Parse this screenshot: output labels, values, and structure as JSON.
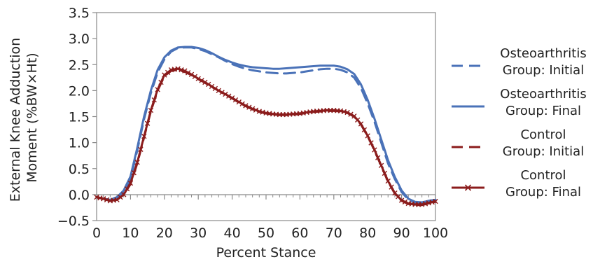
{
  "chart_data": {
    "type": "line",
    "title": "",
    "xlabel": "Percent Stance",
    "ylabel": [
      "External Knee Adduction",
      "Moment (%BW×Ht)"
    ],
    "xlim": [
      0,
      100
    ],
    "ylim": [
      -0.5,
      3.5
    ],
    "x_ticks": [
      "0",
      "10",
      "20",
      "30",
      "40",
      "50",
      "60",
      "70",
      "80",
      "90",
      "100"
    ],
    "y_ticks": [
      "3.5",
      "3.0",
      "2.5",
      "2.0",
      "1.5",
      "1.0",
      "0.5",
      "0.0",
      "−0.5"
    ],
    "grid": false,
    "legend_position": "right",
    "series": [
      {
        "name": [
          "Osteoarthritis",
          "Group: Initial"
        ],
        "color": "#4a72b8",
        "style": "dashed",
        "marker": "none",
        "points": [
          [
            0,
            -0.05
          ],
          [
            2,
            -0.08
          ],
          [
            4,
            -0.1
          ],
          [
            6,
            -0.05
          ],
          [
            8,
            0.05
          ],
          [
            10,
            0.3
          ],
          [
            12,
            0.85
          ],
          [
            14,
            1.45
          ],
          [
            16,
            1.95
          ],
          [
            18,
            2.35
          ],
          [
            20,
            2.6
          ],
          [
            22,
            2.75
          ],
          [
            24,
            2.82
          ],
          [
            26,
            2.83
          ],
          [
            28,
            2.83
          ],
          [
            30,
            2.8
          ],
          [
            32,
            2.76
          ],
          [
            34,
            2.7
          ],
          [
            36,
            2.64
          ],
          [
            38,
            2.57
          ],
          [
            40,
            2.51
          ],
          [
            42,
            2.46
          ],
          [
            44,
            2.42
          ],
          [
            46,
            2.39
          ],
          [
            48,
            2.37
          ],
          [
            50,
            2.35
          ],
          [
            52,
            2.34
          ],
          [
            54,
            2.33
          ],
          [
            56,
            2.33
          ],
          [
            58,
            2.34
          ],
          [
            60,
            2.35
          ],
          [
            62,
            2.37
          ],
          [
            64,
            2.39
          ],
          [
            66,
            2.41
          ],
          [
            68,
            2.42
          ],
          [
            70,
            2.42
          ],
          [
            72,
            2.4
          ],
          [
            74,
            2.35
          ],
          [
            76,
            2.25
          ],
          [
            78,
            2.05
          ],
          [
            80,
            1.75
          ],
          [
            82,
            1.4
          ],
          [
            84,
            1.0
          ],
          [
            86,
            0.6
          ],
          [
            88,
            0.3
          ],
          [
            90,
            0.05
          ],
          [
            92,
            -0.1
          ],
          [
            94,
            -0.15
          ],
          [
            96,
            -0.15
          ],
          [
            98,
            -0.12
          ],
          [
            100,
            -0.1
          ]
        ]
      },
      {
        "name": [
          "Osteoarthritis",
          "Group: Final"
        ],
        "color": "#4a72b8",
        "style": "solid",
        "marker": "none",
        "points": [
          [
            0,
            -0.05
          ],
          [
            2,
            -0.08
          ],
          [
            4,
            -0.1
          ],
          [
            6,
            -0.05
          ],
          [
            8,
            0.08
          ],
          [
            10,
            0.35
          ],
          [
            12,
            0.9
          ],
          [
            14,
            1.5
          ],
          [
            16,
            2.0
          ],
          [
            18,
            2.4
          ],
          [
            20,
            2.64
          ],
          [
            22,
            2.77
          ],
          [
            24,
            2.83
          ],
          [
            26,
            2.84
          ],
          [
            28,
            2.84
          ],
          [
            30,
            2.82
          ],
          [
            32,
            2.78
          ],
          [
            34,
            2.72
          ],
          [
            36,
            2.65
          ],
          [
            38,
            2.59
          ],
          [
            40,
            2.54
          ],
          [
            42,
            2.5
          ],
          [
            44,
            2.47
          ],
          [
            46,
            2.45
          ],
          [
            48,
            2.44
          ],
          [
            50,
            2.43
          ],
          [
            52,
            2.42
          ],
          [
            54,
            2.42
          ],
          [
            56,
            2.43
          ],
          [
            58,
            2.44
          ],
          [
            60,
            2.45
          ],
          [
            62,
            2.46
          ],
          [
            64,
            2.47
          ],
          [
            66,
            2.48
          ],
          [
            68,
            2.48
          ],
          [
            70,
            2.48
          ],
          [
            72,
            2.46
          ],
          [
            74,
            2.41
          ],
          [
            76,
            2.32
          ],
          [
            78,
            2.12
          ],
          [
            80,
            1.82
          ],
          [
            82,
            1.46
          ],
          [
            84,
            1.06
          ],
          [
            86,
            0.66
          ],
          [
            88,
            0.34
          ],
          [
            90,
            0.08
          ],
          [
            92,
            -0.08
          ],
          [
            94,
            -0.14
          ],
          [
            96,
            -0.15
          ],
          [
            98,
            -0.12
          ],
          [
            100,
            -0.1
          ]
        ]
      },
      {
        "name": [
          "Control",
          "Group: Initial"
        ],
        "color": "#8b1c1c",
        "style": "dashed",
        "marker": "none",
        "points": [
          [
            0,
            -0.05
          ],
          [
            2,
            -0.08
          ],
          [
            4,
            -0.12
          ],
          [
            6,
            -0.1
          ],
          [
            8,
            0.0
          ],
          [
            10,
            0.2
          ],
          [
            12,
            0.6
          ],
          [
            14,
            1.1
          ],
          [
            16,
            1.6
          ],
          [
            18,
            2.0
          ],
          [
            20,
            2.28
          ],
          [
            22,
            2.38
          ],
          [
            24,
            2.4
          ],
          [
            26,
            2.36
          ],
          [
            28,
            2.3
          ],
          [
            30,
            2.22
          ],
          [
            32,
            2.15
          ],
          [
            34,
            2.07
          ],
          [
            36,
            2.0
          ],
          [
            38,
            1.92
          ],
          [
            40,
            1.85
          ],
          [
            42,
            1.77
          ],
          [
            44,
            1.7
          ],
          [
            46,
            1.64
          ],
          [
            48,
            1.59
          ],
          [
            50,
            1.56
          ],
          [
            52,
            1.54
          ],
          [
            54,
            1.53
          ],
          [
            56,
            1.53
          ],
          [
            58,
            1.54
          ],
          [
            60,
            1.55
          ],
          [
            62,
            1.57
          ],
          [
            64,
            1.59
          ],
          [
            66,
            1.6
          ],
          [
            68,
            1.61
          ],
          [
            70,
            1.61
          ],
          [
            72,
            1.6
          ],
          [
            74,
            1.57
          ],
          [
            76,
            1.5
          ],
          [
            78,
            1.35
          ],
          [
            80,
            1.12
          ],
          [
            82,
            0.85
          ],
          [
            84,
            0.55
          ],
          [
            86,
            0.25
          ],
          [
            88,
            0.02
          ],
          [
            90,
            -0.12
          ],
          [
            92,
            -0.18
          ],
          [
            94,
            -0.2
          ],
          [
            96,
            -0.2
          ],
          [
            98,
            -0.17
          ],
          [
            100,
            -0.14
          ]
        ]
      },
      {
        "name": [
          "Control",
          "Group: Final"
        ],
        "color": "#8b1c1c",
        "style": "solid",
        "marker": "x",
        "points": [
          [
            0,
            -0.05
          ],
          [
            2,
            -0.08
          ],
          [
            4,
            -0.12
          ],
          [
            6,
            -0.1
          ],
          [
            8,
            0.0
          ],
          [
            10,
            0.22
          ],
          [
            12,
            0.62
          ],
          [
            14,
            1.12
          ],
          [
            16,
            1.62
          ],
          [
            18,
            2.02
          ],
          [
            20,
            2.3
          ],
          [
            22,
            2.4
          ],
          [
            24,
            2.42
          ],
          [
            26,
            2.38
          ],
          [
            28,
            2.31
          ],
          [
            30,
            2.23
          ],
          [
            32,
            2.16
          ],
          [
            34,
            2.08
          ],
          [
            36,
            2.0
          ],
          [
            38,
            1.93
          ],
          [
            40,
            1.86
          ],
          [
            42,
            1.78
          ],
          [
            44,
            1.71
          ],
          [
            46,
            1.65
          ],
          [
            48,
            1.6
          ],
          [
            50,
            1.57
          ],
          [
            52,
            1.55
          ],
          [
            54,
            1.54
          ],
          [
            56,
            1.54
          ],
          [
            58,
            1.55
          ],
          [
            60,
            1.56
          ],
          [
            62,
            1.58
          ],
          [
            64,
            1.6
          ],
          [
            66,
            1.61
          ],
          [
            68,
            1.62
          ],
          [
            70,
            1.62
          ],
          [
            72,
            1.61
          ],
          [
            74,
            1.58
          ],
          [
            76,
            1.51
          ],
          [
            78,
            1.36
          ],
          [
            80,
            1.13
          ],
          [
            82,
            0.86
          ],
          [
            84,
            0.56
          ],
          [
            86,
            0.26
          ],
          [
            88,
            0.03
          ],
          [
            90,
            -0.11
          ],
          [
            92,
            -0.17
          ],
          [
            94,
            -0.19
          ],
          [
            96,
            -0.19
          ],
          [
            98,
            -0.16
          ],
          [
            100,
            -0.13
          ]
        ]
      }
    ]
  }
}
